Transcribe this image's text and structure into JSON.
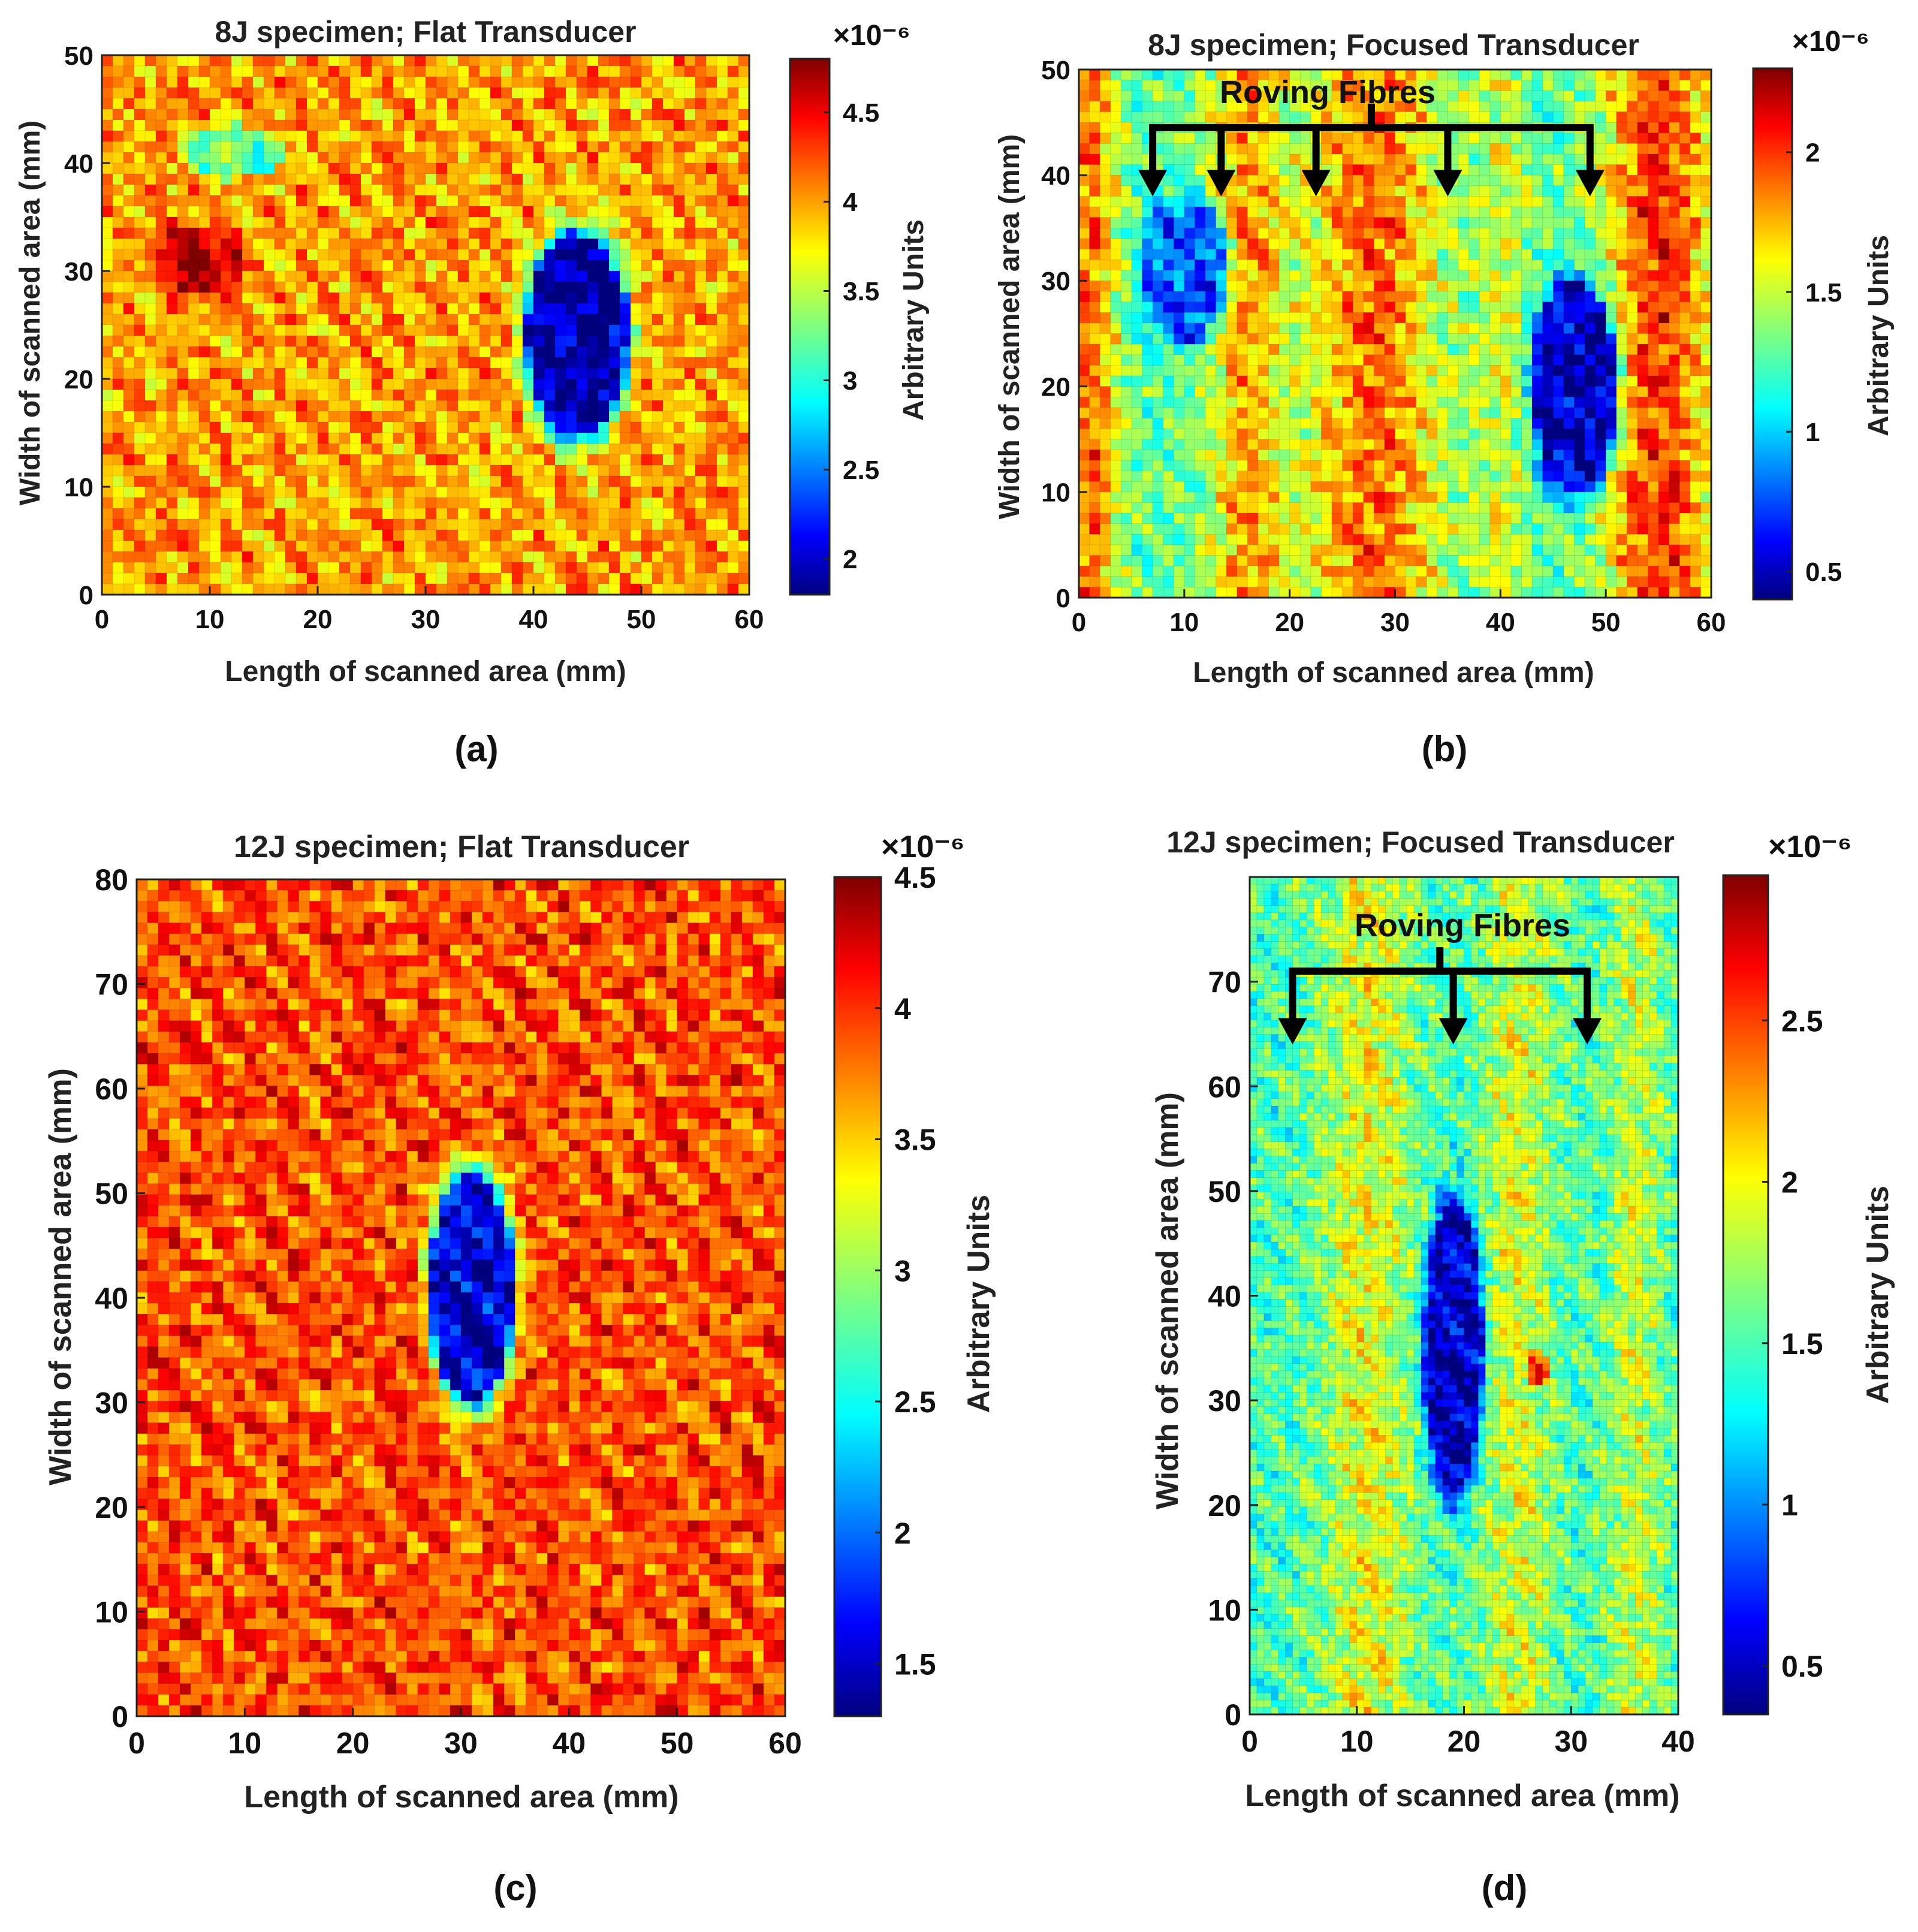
{
  "colors": {
    "jet": [
      "#00007f",
      "#0000ff",
      "#007fff",
      "#00ffff",
      "#7fff7f",
      "#ffff00",
      "#ff7f00",
      "#ff0000",
      "#7f0000"
    ],
    "text": "#111111",
    "arrow": "#000000"
  },
  "chart_data": [
    {
      "type": "heatmap",
      "title": "8J specimen; Flat Transducer",
      "xlabel": "Length of scanned area (mm)",
      "ylabel": "Width of scanned area (mm)",
      "xlim": [
        0,
        60
      ],
      "ylim": [
        0,
        50
      ],
      "xticks": [
        0,
        10,
        20,
        30,
        40,
        50,
        60
      ],
      "yticks": [
        0,
        10,
        20,
        30,
        40,
        50
      ],
      "colorbar": {
        "label": "Arbitrary Units",
        "exponent": "×10⁻⁶",
        "min": 1.8,
        "max": 4.8,
        "ticks": [
          2,
          2.5,
          3,
          3.5,
          4,
          4.5
        ]
      },
      "background_value": 4.0,
      "features": [
        {
          "kind": "damage",
          "x": 44,
          "y": 24,
          "rx": 6,
          "ry": 12,
          "value": 1.9
        },
        {
          "kind": "hot",
          "x": 9,
          "y": 31,
          "rx": 5,
          "ry": 4,
          "value": 4.7
        },
        {
          "kind": "mild",
          "x": 12,
          "y": 41,
          "rx": 6,
          "ry": 3,
          "value": 3.2
        }
      ],
      "caption": "(a)"
    },
    {
      "type": "heatmap",
      "title": "8J specimen; Focused Transducer",
      "xlabel": "Length of scanned area (mm)",
      "ylabel": "Width of scanned area (mm)",
      "xlim": [
        0,
        60
      ],
      "ylim": [
        0,
        50
      ],
      "xticks": [
        0,
        10,
        20,
        30,
        40,
        50,
        60
      ],
      "yticks": [
        0,
        10,
        20,
        30,
        40,
        50
      ],
      "colorbar": {
        "label": "Arbitrary Units",
        "exponent": "×10⁻⁶",
        "min": 0.4,
        "max": 2.3,
        "ticks": [
          0.5,
          1,
          1.5,
          2
        ]
      },
      "background_value": 1.3,
      "stripes": [
        {
          "x": 1,
          "width": 3,
          "value": 1.9
        },
        {
          "x": 16,
          "width": 4,
          "value": 1.8
        },
        {
          "x": 28,
          "width": 7,
          "value": 1.9
        },
        {
          "x": 40,
          "width": 3,
          "value": 1.5
        },
        {
          "x": 55,
          "width": 6,
          "value": 2.0
        }
      ],
      "features": [
        {
          "kind": "damage",
          "x": 10,
          "y": 31,
          "rx": 5,
          "ry": 9,
          "value": 0.8
        },
        {
          "kind": "damage",
          "x": 47,
          "y": 20,
          "rx": 5,
          "ry": 13,
          "value": 0.5
        }
      ],
      "annotation": {
        "text": "Roving Fibres",
        "arrows_x": [
          7,
          13.5,
          22.5,
          35,
          48.5
        ],
        "arrow_y_top": 44.5,
        "arrow_y_bottom": 38
      },
      "caption": "(b)"
    },
    {
      "type": "heatmap",
      "title": "12J specimen; Flat Transducer",
      "xlabel": "Length of scanned area (mm)",
      "ylabel": "Width of scanned area (mm)",
      "xlim": [
        0,
        60
      ],
      "ylim": [
        0,
        80
      ],
      "xticks": [
        0,
        10,
        20,
        30,
        40,
        50,
        60
      ],
      "yticks": [
        0,
        10,
        20,
        30,
        40,
        50,
        60,
        70,
        80
      ],
      "colorbar": {
        "label": "Arbitrary Units",
        "exponent": "×10⁻⁶",
        "min": 1.3,
        "max": 4.5,
        "ticks": [
          1.5,
          2,
          2.5,
          3,
          3.5,
          4,
          4.5
        ]
      },
      "background_value": 3.9,
      "features": [
        {
          "kind": "damage",
          "x": 31,
          "y": 41,
          "rx": 5,
          "ry": 14,
          "value": 1.6
        }
      ],
      "caption": "(c)"
    },
    {
      "type": "heatmap",
      "title": "12J specimen; Focused Transducer",
      "xlabel": "Length of scanned area (mm)",
      "ylabel": "Width of scanned area (mm)",
      "xlim": [
        0,
        40
      ],
      "ylim": [
        0,
        80
      ],
      "xticks": [
        0,
        10,
        20,
        30,
        40
      ],
      "yticks": [
        0,
        10,
        20,
        30,
        40,
        50,
        60,
        70
      ],
      "colorbar": {
        "label": "Arbitrary Units",
        "exponent": "×10⁻⁶",
        "min": 0.35,
        "max": 2.95,
        "ticks": [
          0.5,
          1,
          1.5,
          2,
          2.5
        ]
      },
      "background_value": 1.5,
      "stripes": [
        {
          "x": 11,
          "width": 5,
          "value": 1.95
        },
        {
          "x": 25,
          "width": 4,
          "value": 1.9
        },
        {
          "x": 36,
          "width": 3,
          "value": 1.85
        }
      ],
      "features": [
        {
          "kind": "damage",
          "x": 19,
          "y": 35,
          "rx": 3.5,
          "ry": 18,
          "value": 0.5
        },
        {
          "kind": "hot",
          "x": 27,
          "y": 33,
          "rx": 1.2,
          "ry": 2,
          "value": 2.5
        }
      ],
      "annotation": {
        "text": "Roving Fibres",
        "arrows_x": [
          4,
          19,
          31.5
        ],
        "arrow_y_top": 71,
        "arrow_y_bottom": 64
      },
      "caption": "(d)"
    }
  ]
}
